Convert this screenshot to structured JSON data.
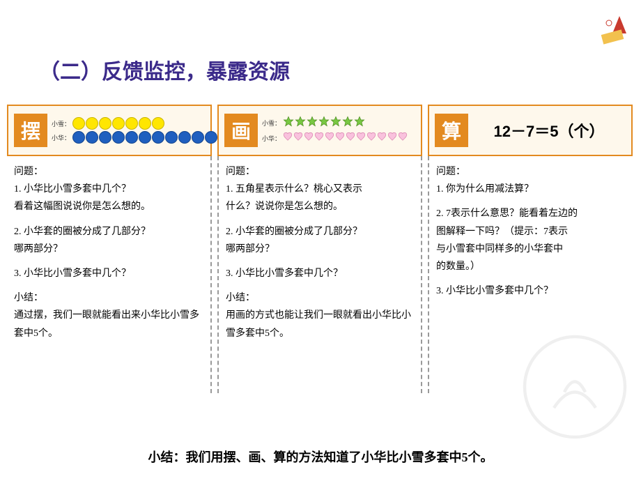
{
  "heading": "（二）反馈监控，暴露资源",
  "columns": [
    {
      "tag": "摆",
      "visual": {
        "type": "dots",
        "rows": [
          {
            "label": "小雪：",
            "count": 7,
            "fill": "#ffe600",
            "stroke": "#c9b400"
          },
          {
            "label": "小华：",
            "count": 12,
            "fill": "#1f5fbf",
            "stroke": "#13458e"
          }
        ]
      },
      "q_head": "问题：",
      "questions": [
        "1. 小华比小雪多套中几个？\n    看着这幅图说说你是怎么想的。",
        "2. 小华套的圈被分成了几部分？\n    哪两部分？",
        "3. 小华比小雪多套中几个？"
      ],
      "summary_label": "小结：",
      "summary": "        通过摆，我们一眼就能看出来小华比小雪多套中5个。"
    },
    {
      "tag": "画",
      "visual": {
        "type": "stars_hearts",
        "rows": [
          {
            "label": "小雪：",
            "count": 7,
            "shape": "star",
            "fill": "#79c843",
            "stroke": "#4a8a1e"
          },
          {
            "label": "小华：",
            "count": 12,
            "shape": "heart",
            "fill": "#f9c2dd",
            "stroke": "#d47aa8"
          }
        ]
      },
      "q_head": "问题：",
      "questions": [
        "1. 五角星表示什么？桃心又表示\n    什么？说说你是怎么想的。",
        "2. 小华套的圈被分成了几部分？\n    哪两部分？",
        " 3. 小华比小雪多套中几个？"
      ],
      "summary_label": "小结：",
      "summary": "        用画的方式也能让我们一眼就看出小华比小雪多套中5个。"
    },
    {
      "tag": "算",
      "visual": {
        "type": "equation",
        "text": "12－7＝5（个）"
      },
      "q_head": "问题：",
      "questions": [
        "1. 你为什么用减法算？",
        "2. 7表示什么意思？能看着左边的\n    图解释一下吗？（提示：7表示\n    与小雪套中同样多的小华套中\n    的数量。）",
        "3. 小华比小雪多套中几个？"
      ],
      "summary_label": "",
      "summary": ""
    }
  ],
  "final_summary": "小结：我们用摆、画、算的方法知道了小华比小雪多套中5个。",
  "colors": {
    "heading": "#3b2a8a",
    "border": "#e38a20",
    "header_bg": "#fef8ec",
    "tag_bg": "#e38a20",
    "tag_fg": "#ffffff"
  }
}
